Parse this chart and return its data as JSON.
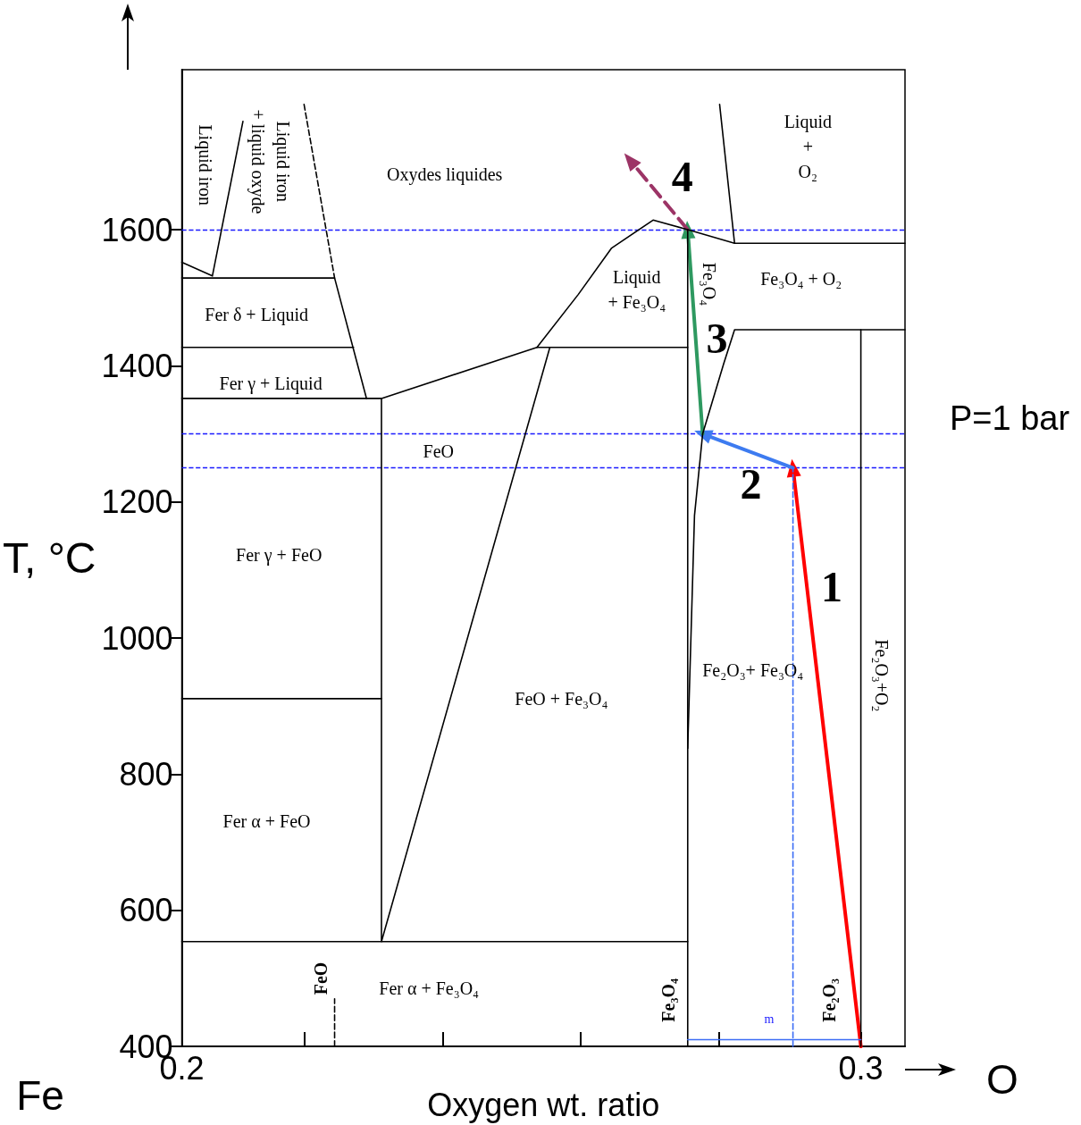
{
  "chart_data": {
    "type": "line",
    "xlabel": "Oxygen wt. ratio",
    "ylabel": "T, °C",
    "xlim": [
      0.2,
      0.3065
    ],
    "ylim": [
      400,
      1835
    ],
    "xticks": [
      0.2,
      {
        "value": 0.218,
        "label": null
      },
      {
        "value": 0.2384,
        "label": null
      },
      {
        "value": 0.2587,
        "label": null
      },
      {
        "value": 0.2791,
        "label": null
      },
      0.3
    ],
    "yticks": [
      400,
      600,
      800,
      1000,
      1200,
      1400,
      1600
    ],
    "marker": "none",
    "line_style": "solid",
    "grid": false,
    "series": [
      {
        "color": "#000000",
        "x": [
          0.2,
          0.2045,
          0.209
        ],
        "values": [
          1552,
          1532,
          1759
        ]
      },
      {
        "color": "#000000",
        "x": [
          0.2,
          0.2225,
          0.2272
        ],
        "values": [
          1529,
          1529,
          1352
        ]
      },
      {
        "color": "#000000",
        "x": [
          0.218,
          0.2225
        ],
        "values": [
          1784,
          1529
        ],
        "line_style": "dashed"
      },
      {
        "color": "#000000",
        "x": [
          0.2,
          0.2253
        ],
        "values": [
          1427,
          1427
        ]
      },
      {
        "color": "#000000",
        "x": [
          0.2,
          0.2294,
          0.2523,
          0.2745
        ],
        "values": [
          1352,
          1352,
          1427,
          1427
        ]
      },
      {
        "color": "#000000",
        "x": [
          0.2294,
          0.2294,
          0.2542
        ],
        "values": [
          1352,
          554,
          1427
        ]
      },
      {
        "color": "#000000",
        "x": [
          0.2,
          0.2294
        ],
        "values": [
          911,
          911
        ]
      },
      {
        "color": "#000000",
        "x": [
          0.2,
          0.2745
        ],
        "values": [
          554,
          554
        ]
      },
      {
        "color": "#000000",
        "x": [
          0.2523,
          0.2584,
          0.2633,
          0.2694,
          0.2745,
          0.2814
        ],
        "values": [
          1427,
          1505,
          1573,
          1614,
          1600,
          1580
        ]
      },
      {
        "color": "#000000",
        "x": [
          0.2745,
          0.2745
        ],
        "values": [
          400,
          1600
        ]
      },
      {
        "color": "#000000",
        "x": [
          0.2745,
          0.2755,
          0.2767,
          0.2798,
          0.2814,
          0.3065
        ],
        "values": [
          838,
          1180,
          1300,
          1403,
          1453,
          1453
        ]
      },
      {
        "color": "#000000",
        "x": [
          0.2792,
          0.2814,
          0.3065
        ],
        "values": [
          1784,
          1580,
          1580
        ]
      },
      {
        "color": "#000000",
        "x": [
          0.3,
          0.3
        ],
        "values": [
          400,
          1453
        ]
      },
      {
        "color": "#000000",
        "x": [
          0.2225,
          0.2225
        ],
        "values": [
          400,
          470
        ],
        "line_style": "dashed"
      },
      {
        "color": "#3b6cf5",
        "x": [
          0.29,
          0.29
        ],
        "values": [
          400,
          1250
        ],
        "line_style": "dashed"
      },
      {
        "color": "#3b6cf5",
        "x": [
          0.2745,
          0.29,
          0.3
        ],
        "values": [
          410,
          410,
          410
        ]
      },
      {
        "color": "#ff0000",
        "x": [
          0.3,
          0.29
        ],
        "values": [
          400,
          1250
        ],
        "marker": "triangle"
      },
      {
        "color": "#3d7bf0",
        "x": [
          0.29,
          0.2767
        ],
        "values": [
          1250,
          1300
        ],
        "marker": "triangle"
      },
      {
        "color": "#2e9960",
        "x": [
          0.2767,
          0.2745
        ],
        "values": [
          1300,
          1600
        ],
        "marker": "triangle"
      },
      {
        "color": "#9c3466",
        "x": [
          0.2745,
          0.266
        ],
        "values": [
          1600,
          1702
        ],
        "marker": "triangle",
        "line_style": "dashed"
      }
    ],
    "ref_lines": [
      {
        "axis": "y",
        "value": 1600,
        "color": "#1a1aff",
        "line_style": "dashed"
      },
      {
        "axis": "y",
        "value": 1300,
        "color": "#1a1aff",
        "line_style": "dashed"
      },
      {
        "axis": "y",
        "value": 1250,
        "color": "#1a1aff",
        "line_style": "dashed"
      }
    ],
    "annotations": [
      "Liquid iron",
      "Liquid iron\n+ liquid oxyde",
      "Oxydes liquides",
      "Liquid\n+\nO₂",
      "Fer δ + Liquid",
      "Fer γ + Liquid",
      "Liquid\n+ Fe₃O₄",
      "Fe₃O₄",
      "Fe₃O₄ + O₂",
      "FeO",
      "Fer γ + FeO",
      "Fe₂O₃+ Fe₃O₄",
      "Fe₂O₃+O₂",
      "FeO + Fe₃O₄",
      "Fer α + FeO",
      "Fer α + Fe₃O₄",
      "FeO",
      "Fe₃O₄",
      "Fe₂O₃",
      "m",
      "1",
      "2",
      "3",
      "4",
      "P=1 bar",
      "Fe",
      "O"
    ]
  }
}
